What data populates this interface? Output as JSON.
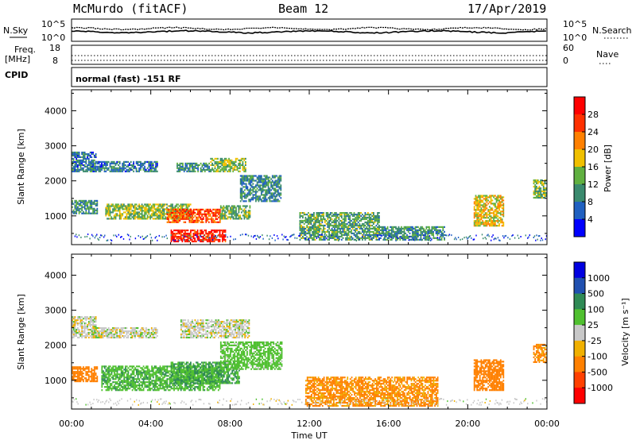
{
  "header": {
    "station": "McMurdo (fitACF)",
    "beam": "Beam 12",
    "date": "17/Apr/2019"
  },
  "summary_panels": {
    "nsky_label": "N.Sky",
    "nsky_top": "10^5",
    "nsky_bottom": "10^0",
    "nsearch_label": "N.Search",
    "nsearch_top": "10^5",
    "nsearch_bottom": "10^0",
    "freq_label": "Freq.",
    "freq_unit": "[MHz]",
    "freq_top": "18",
    "freq_bottom": "8",
    "nave_label": "Nave",
    "nave_top": "60",
    "nave_bottom": "0",
    "cpid_label": "CPID",
    "cpid_text": "normal (fast) -151 RF"
  },
  "axes": {
    "xlabel": "Time UT",
    "x_ticks": [
      "00:00",
      "04:00",
      "08:00",
      "12:00",
      "16:00",
      "20:00",
      "00:00"
    ],
    "ylabel": "Slant Range [km]",
    "y_ticks": [
      "1000",
      "2000",
      "3000",
      "4000"
    ]
  },
  "power_colorbar": {
    "label": "Power [dB]",
    "ticks": [
      "4",
      "8",
      "12",
      "16",
      "20",
      "24",
      "28"
    ],
    "colors": [
      "#0000ff",
      "#2060c0",
      "#3a8a6e",
      "#60b040",
      "#f0c000",
      "#ff8000",
      "#ff3000",
      "#ff0000"
    ]
  },
  "velocity_colorbar": {
    "label": "Velocity [m s⁻¹]",
    "ticks": [
      "1000",
      "500",
      "100",
      "25",
      "-25",
      "-100",
      "-500",
      "-1000"
    ],
    "colors": [
      "#0000e0",
      "#2050b0",
      "#2f8a55",
      "#50c030",
      "#c8c8c8",
      "#f0b000",
      "#ff8000",
      "#ff4000",
      "#ff0000"
    ]
  },
  "chart_data": [
    {
      "type": "heatmap",
      "title": "Power",
      "xlabel": "Time UT",
      "ylabel": "Slant Range [km]",
      "x_range_hours": [
        0,
        24
      ],
      "ylim": [
        180,
        4600
      ],
      "colorbar_label": "Power [dB]",
      "colorbar_range": [
        0,
        30
      ],
      "regions": [
        {
          "t": [
            0.0,
            1.2
          ],
          "r": [
            2250,
            2800
          ],
          "level": 8
        },
        {
          "t": [
            1.0,
            4.3
          ],
          "r": [
            2250,
            2550
          ],
          "level": 8
        },
        {
          "t": [
            5.3,
            7.0
          ],
          "r": [
            2250,
            2500
          ],
          "level": 10
        },
        {
          "t": [
            7.0,
            8.8
          ],
          "r": [
            2250,
            2650
          ],
          "level": 14
        },
        {
          "t": [
            0.0,
            1.3
          ],
          "r": [
            1050,
            1450
          ],
          "level": 10
        },
        {
          "t": [
            1.7,
            6.0
          ],
          "r": [
            900,
            1350
          ],
          "level": 15
        },
        {
          "t": [
            4.8,
            7.5
          ],
          "r": [
            800,
            1200
          ],
          "level": 25
        },
        {
          "t": [
            7.5,
            9.0
          ],
          "r": [
            900,
            1300
          ],
          "level": 13
        },
        {
          "t": [
            8.5,
            10.6
          ],
          "r": [
            1400,
            2150
          ],
          "level": 9
        },
        {
          "t": [
            5.0,
            7.8
          ],
          "r": [
            250,
            600
          ],
          "level": 28
        },
        {
          "t": [
            11.5,
            15.5
          ],
          "r": [
            300,
            1100
          ],
          "level": 12
        },
        {
          "t": [
            15.5,
            18.8
          ],
          "r": [
            300,
            700
          ],
          "level": 10
        },
        {
          "t": [
            20.3,
            21.8
          ],
          "r": [
            700,
            1600
          ],
          "level": 18
        },
        {
          "t": [
            23.3,
            24.0
          ],
          "r": [
            1500,
            2000
          ],
          "level": 14
        }
      ]
    },
    {
      "type": "heatmap",
      "title": "Velocity",
      "xlabel": "Time UT",
      "ylabel": "Slant Range [km]",
      "x_range_hours": [
        0,
        24
      ],
      "ylim": [
        180,
        4600
      ],
      "colorbar_label": "Velocity [m s⁻¹]",
      "colorbar_range": [
        -1000,
        1000
      ],
      "regions": [
        {
          "t": [
            0.0,
            1.2
          ],
          "r": [
            2200,
            2800
          ],
          "v": 0
        },
        {
          "t": [
            1.0,
            4.3
          ],
          "r": [
            2200,
            2500
          ],
          "v": 0
        },
        {
          "t": [
            5.5,
            9.0
          ],
          "r": [
            2200,
            2700
          ],
          "v": 0
        },
        {
          "t": [
            0.0,
            1.3
          ],
          "r": [
            950,
            1400
          ],
          "v": -150
        },
        {
          "t": [
            1.5,
            7.5
          ],
          "r": [
            700,
            1400
          ],
          "v": 80
        },
        {
          "t": [
            5.0,
            8.5
          ],
          "r": [
            900,
            1500
          ],
          "v": 100
        },
        {
          "t": [
            7.5,
            10.6
          ],
          "r": [
            1300,
            2100
          ],
          "v": 60
        },
        {
          "t": [
            11.8,
            18.5
          ],
          "r": [
            250,
            1100
          ],
          "v": -120
        },
        {
          "t": [
            20.3,
            21.8
          ],
          "r": [
            700,
            1600
          ],
          "v": -150
        },
        {
          "t": [
            23.3,
            24.0
          ],
          "r": [
            1500,
            2000
          ],
          "v": -120
        }
      ]
    }
  ]
}
